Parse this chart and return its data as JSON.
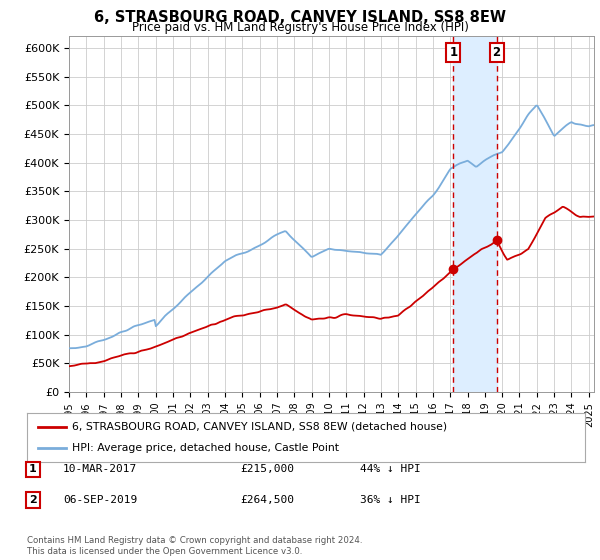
{
  "title": "6, STRASBOURG ROAD, CANVEY ISLAND, SS8 8EW",
  "subtitle": "Price paid vs. HM Land Registry's House Price Index (HPI)",
  "ylim": [
    0,
    620000
  ],
  "yticks": [
    0,
    50000,
    100000,
    150000,
    200000,
    250000,
    300000,
    350000,
    400000,
    450000,
    500000,
    550000,
    600000
  ],
  "ytick_labels": [
    "£0",
    "£50K",
    "£100K",
    "£150K",
    "£200K",
    "£250K",
    "£300K",
    "£350K",
    "£400K",
    "£450K",
    "£500K",
    "£550K",
    "£600K"
  ],
  "transaction1": {
    "date_label": "10-MAR-2017",
    "year": 2017.19,
    "price": 215000,
    "label": "1",
    "pct": "44% ↓ HPI"
  },
  "transaction2": {
    "date_label": "06-SEP-2019",
    "year": 2019.68,
    "price": 264500,
    "label": "2",
    "pct": "36% ↓ HPI"
  },
  "legend_red": "6, STRASBOURG ROAD, CANVEY ISLAND, SS8 8EW (detached house)",
  "legend_blue": "HPI: Average price, detached house, Castle Point",
  "footer": "Contains HM Land Registry data © Crown copyright and database right 2024.\nThis data is licensed under the Open Government Licence v3.0.",
  "red_color": "#cc0000",
  "blue_color": "#7aaddb",
  "shade_color": "#ddeeff",
  "box_color": "#cc0000",
  "background_color": "#ffffff",
  "grid_color": "#cccccc",
  "xlim_left": 1995,
  "xlim_right": 2025.3
}
